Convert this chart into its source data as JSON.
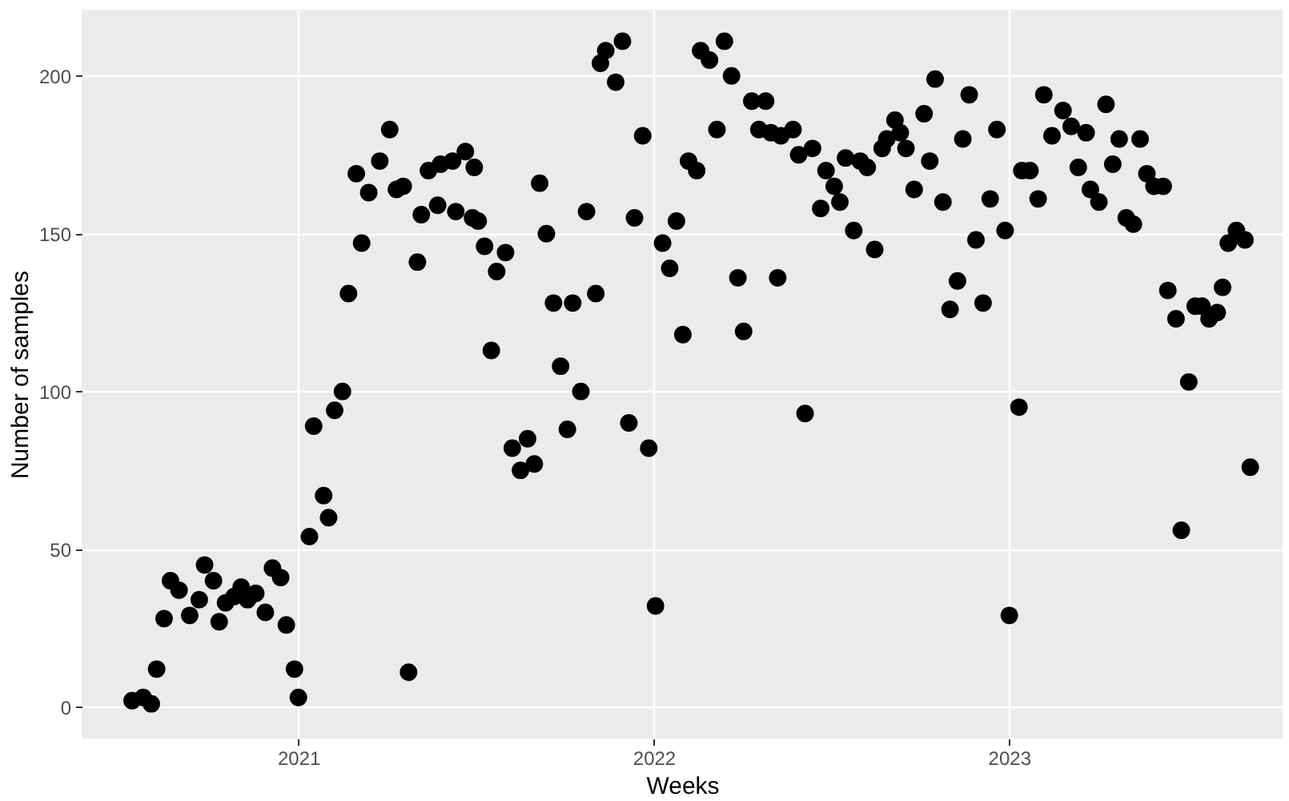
{
  "chart_data": {
    "type": "scatter",
    "xlabel": "Weeks",
    "ylabel": "Number of samples",
    "color": "#000000",
    "marker": "circle",
    "grid": true,
    "xlim": [
      2020.39,
      2023.77
    ],
    "xticks": [
      2021,
      2022,
      2023
    ],
    "ylim": [
      -10,
      221
    ],
    "yticks": [
      0,
      50,
      100,
      150,
      200
    ],
    "x": [
      2020.532,
      2020.563,
      2020.586,
      2020.601,
      2020.622,
      2020.64,
      2020.664,
      2020.694,
      2020.721,
      2020.736,
      2020.761,
      2020.777,
      2020.795,
      2020.819,
      2020.839,
      2020.857,
      2020.88,
      2020.907,
      2020.927,
      2020.95,
      2020.966,
      2020.989,
      2021.0,
      2021.031,
      2021.043,
      2021.071,
      2021.085,
      2021.102,
      2021.124,
      2021.141,
      2021.163,
      2021.178,
      2021.198,
      2021.229,
      2021.257,
      2021.276,
      2021.295,
      2021.31,
      2021.335,
      2021.346,
      2021.366,
      2021.392,
      2021.4,
      2021.434,
      2021.443,
      2021.47,
      2021.49,
      2021.495,
      2021.506,
      2021.524,
      2021.558,
      2021.583,
      2021.543,
      2021.602,
      2021.625,
      2021.645,
      2021.664,
      2021.679,
      2021.698,
      2021.718,
      2021.738,
      2021.772,
      2021.795,
      2021.757,
      2021.811,
      2021.837,
      2021.85,
      2021.865,
      2021.893,
      2021.912,
      2021.93,
      2021.946,
      2021.969,
      2021.986,
      2022.005,
      2022.025,
      2022.045,
      2022.064,
      2022.082,
      2022.098,
      2022.121,
      2022.132,
      2022.157,
      2022.178,
      2022.199,
      2022.219,
      2022.237,
      2022.253,
      2022.276,
      2022.296,
      2022.315,
      2022.33,
      2022.349,
      2022.358,
      2022.392,
      2022.408,
      2022.426,
      2022.447,
      2022.47,
      2022.485,
      2022.508,
      2022.524,
      2022.54,
      2022.563,
      2022.581,
      2022.601,
      2022.622,
      2022.643,
      2022.656,
      2022.679,
      2022.694,
      2022.71,
      2022.733,
      2022.761,
      2022.777,
      2022.792,
      2022.814,
      2022.834,
      2022.855,
      2022.87,
      2022.888,
      2022.907,
      2022.927,
      2022.947,
      2022.966,
      2022.989,
      2023.001,
      2023.028,
      2023.036,
      2023.059,
      2023.082,
      2023.098,
      2023.121,
      2023.152,
      2023.175,
      2023.195,
      2023.217,
      2023.229,
      2023.253,
      2023.273,
      2023.292,
      2023.31,
      2023.33,
      2023.35,
      2023.369,
      2023.388,
      2023.408,
      2023.434,
      2023.447,
      2023.47,
      2023.485,
      2023.506,
      2023.524,
      2023.543,
      2023.563,
      2023.586,
      2023.601,
      2023.617,
      2023.64,
      2023.664,
      2023.679
    ],
    "values": [
      2,
      3,
      1,
      12,
      28,
      40,
      37,
      29,
      34,
      45,
      40,
      27,
      33,
      35,
      38,
      34,
      36,
      30,
      44,
      41,
      26,
      12,
      3,
      54,
      89,
      67,
      60,
      94,
      100,
      131,
      169,
      147,
      163,
      173,
      183,
      164,
      165,
      11,
      141,
      156,
      170,
      159,
      172,
      173,
      157,
      176,
      155,
      171,
      154,
      146,
      138,
      144,
      113,
      82,
      75,
      85,
      77,
      166,
      150,
      128,
      108,
      128,
      100,
      88,
      157,
      131,
      204,
      208,
      198,
      211,
      90,
      155,
      181,
      82,
      32,
      147,
      139,
      154,
      118,
      173,
      170,
      208,
      205,
      183,
      211,
      200,
      136,
      119,
      192,
      183,
      192,
      182,
      136,
      181,
      183,
      175,
      93,
      177,
      158,
      170,
      165,
      160,
      174,
      151,
      173,
      171,
      145,
      177,
      180,
      186,
      182,
      177,
      164,
      188,
      173,
      199,
      160,
      126,
      135,
      180,
      194,
      148,
      128,
      161,
      183,
      151,
      29,
      95,
      170,
      170,
      161,
      194,
      181,
      189,
      184,
      171,
      182,
      164,
      160,
      191,
      172,
      180,
      155,
      153,
      180,
      169,
      165,
      165,
      132,
      123,
      56,
      103,
      127,
      127,
      123,
      125,
      133,
      147,
      151,
      148,
      76
    ]
  }
}
